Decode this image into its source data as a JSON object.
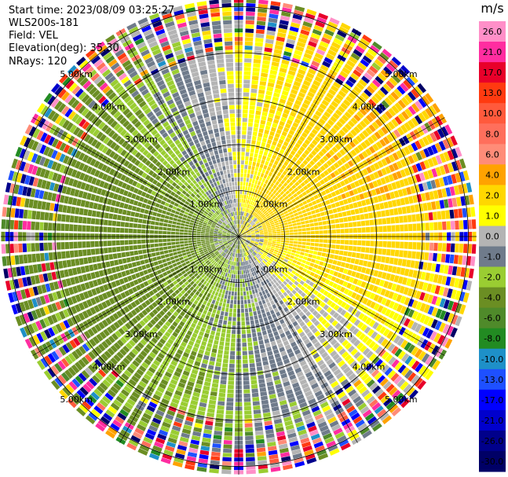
{
  "header": {
    "start_time": "Start time: 2023/08/09 03:25:27",
    "instrument": "WLS200s-181",
    "field": "Field: VEL",
    "elevation": "Elevation(deg): 35.30",
    "nrays": "NRays: 120"
  },
  "chart_data": {
    "type": "heatmap",
    "subtype": "polar-ppi",
    "field": "VEL",
    "units": "m/s",
    "nrays": 120,
    "range_km": [
      0,
      5.6
    ],
    "range_rings_km": [
      1,
      2,
      3,
      4,
      5
    ],
    "ring_labels": [
      "1.00km",
      "2.00km",
      "3.00km",
      "4.00km",
      "5.00km"
    ],
    "pattern_description": "Dipole velocity field: positive (yellow) toward the east/northeast, negative (green) toward the west/southwest, near-zero (grey) band separating; noisy multicolor returns beyond about 4 km.",
    "colorbar": {
      "unit_label": "m/s",
      "ticks": [
        "26.0",
        "21.0",
        "17.0",
        "13.0",
        "10.0",
        "8.0",
        "6.0",
        "4.0",
        "2.0",
        "1.0",
        "0.0",
        "-1.0",
        "-2.0",
        "-4.0",
        "-6.0",
        "-8.0",
        "-10.0",
        "-13.0",
        "-17.0",
        "-21.0",
        "-26.0",
        "-30.0"
      ],
      "segments": [
        {
          "low": 26,
          "high": 30,
          "color": "#ff8fc8"
        },
        {
          "low": 21,
          "high": 26,
          "color": "#ff2da0"
        },
        {
          "low": 17,
          "high": 21,
          "color": "#e8002a"
        },
        {
          "low": 13,
          "high": 17,
          "color": "#ff3a10"
        },
        {
          "low": 10,
          "high": 13,
          "color": "#ff5a3c"
        },
        {
          "low": 8,
          "high": 10,
          "color": "#ff6f5c"
        },
        {
          "low": 6,
          "high": 8,
          "color": "#ff8c78"
        },
        {
          "low": 4,
          "high": 6,
          "color": "#ffa200"
        },
        {
          "low": 2,
          "high": 4,
          "color": "#ffd700"
        },
        {
          "low": 1,
          "high": 2,
          "color": "#ffff00"
        },
        {
          "low": 0,
          "high": 1,
          "color": "#b4b4b4"
        },
        {
          "low": -1,
          "high": 0,
          "color": "#6f7b8b"
        },
        {
          "low": -2,
          "high": -1,
          "color": "#9acd32"
        },
        {
          "low": -4,
          "high": -2,
          "color": "#6b8e23"
        },
        {
          "low": -6,
          "high": -4,
          "color": "#4f8a2a"
        },
        {
          "low": -8,
          "high": -6,
          "color": "#228b22"
        },
        {
          "low": -10,
          "high": -8,
          "color": "#1e90c8"
        },
        {
          "low": -13,
          "high": -10,
          "color": "#1e50ff"
        },
        {
          "low": -17,
          "high": -13,
          "color": "#0000ff"
        },
        {
          "low": -21,
          "high": -17,
          "color": "#0000cd"
        },
        {
          "low": -26,
          "high": -21,
          "color": "#00008b"
        },
        {
          "low": -30,
          "high": -26,
          "color": "#000066"
        }
      ]
    }
  }
}
